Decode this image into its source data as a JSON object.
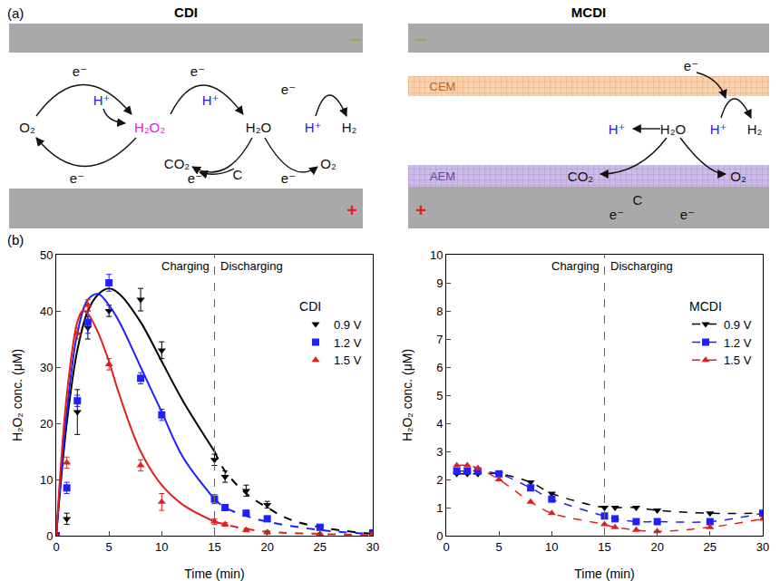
{
  "diagram": {
    "label": "(a)",
    "panels": [
      {
        "title": "CDI",
        "labels": [
          {
            "text": "−",
            "color": "#8db33a"
          },
          {
            "text": "+",
            "color": "#e02020"
          },
          {
            "text": "e⁻",
            "color": "#111111"
          },
          {
            "text": "e⁻",
            "color": "#111111"
          },
          {
            "text": "e⁻",
            "color": "#111111"
          },
          {
            "text": "O₂",
            "color": "#111111"
          },
          {
            "text": "H⁺",
            "color": "#2222dd"
          },
          {
            "text": "H₂O₂",
            "color": "#dd22dd"
          },
          {
            "text": "H⁺",
            "color": "#2222dd"
          },
          {
            "text": "H₂O",
            "color": "#111111"
          },
          {
            "text": "H⁺",
            "color": "#2222dd"
          },
          {
            "text": "H₂",
            "color": "#111111"
          },
          {
            "text": "CO₂",
            "color": "#111111"
          },
          {
            "text": "C",
            "color": "#111111"
          },
          {
            "text": "O₂",
            "color": "#111111"
          },
          {
            "text": "e⁻",
            "color": "#111111"
          },
          {
            "text": "e⁻",
            "color": "#111111"
          },
          {
            "text": "e⁻",
            "color": "#111111"
          }
        ]
      },
      {
        "title": "MCDI",
        "labels": [
          {
            "text": "−",
            "color": "#8db33a"
          },
          {
            "text": "+",
            "color": "#e02020"
          },
          {
            "text": "e⁻",
            "color": "#111111"
          },
          {
            "text": "H⁺",
            "color": "#2222dd"
          },
          {
            "text": "H₂O",
            "color": "#111111"
          },
          {
            "text": "H⁺",
            "color": "#2222dd"
          },
          {
            "text": "H₂",
            "color": "#111111"
          },
          {
            "text": "CO₂",
            "color": "#111111"
          },
          {
            "text": "C",
            "color": "#111111"
          },
          {
            "text": "O₂",
            "color": "#111111"
          },
          {
            "text": "e⁻",
            "color": "#111111"
          },
          {
            "text": "e⁻",
            "color": "#111111"
          }
        ],
        "membranes": [
          {
            "text": "CEM",
            "color": "#b86a2a"
          },
          {
            "text": "AEM",
            "color": "#6a4a9a"
          }
        ]
      }
    ]
  },
  "figure_label": "(b)",
  "chart_data": [
    {
      "type": "scatter",
      "xlabel": "Time (min)",
      "ylabel": "H₂O₂ conc. (μM)",
      "legend_title": "CDI",
      "xlim": [
        0,
        30
      ],
      "xticks": [
        0,
        5,
        10,
        15,
        20,
        25,
        30
      ],
      "ylim": [
        0,
        50
      ],
      "yticks": [
        0,
        10,
        20,
        30,
        40,
        50
      ],
      "grid": false,
      "legend": "upper right",
      "divider": 15,
      "annotations": [
        {
          "text": "Charging",
          "x": 15,
          "side": "left"
        },
        {
          "text": "Discharging",
          "x": 15,
          "side": "right"
        }
      ],
      "series": [
        {
          "name": "0.9 V",
          "color": "#000000",
          "marker": "triangle-down",
          "x": [
            0,
            1,
            2,
            3,
            5,
            8,
            10,
            15,
            16,
            18,
            20,
            25,
            30
          ],
          "values": [
            0,
            3,
            22,
            37,
            40,
            42,
            33,
            13.5,
            10.5,
            8,
            5.5,
            1.5,
            0.5
          ],
          "errors": [
            0,
            1,
            4,
            2,
            1,
            2,
            1.5,
            1,
            1,
            1,
            0.6,
            0.5,
            0.3
          ],
          "fit": [
            {
              "line_style": "solid",
              "x": [
                0,
                1,
                2,
                3,
                4,
                5,
                6,
                8,
                10,
                12,
                15
              ],
              "values": [
                0,
                20,
                33,
                40,
                43,
                44,
                43,
                38,
                31,
                24,
                15
              ]
            },
            {
              "line_style": "dashed",
              "x": [
                15,
                16,
                18,
                20,
                22,
                25,
                30
              ],
              "values": [
                15,
                11.5,
                7.5,
                5,
                3,
                1.5,
                0.3
              ]
            }
          ]
        },
        {
          "name": "1.2 V",
          "color": "#1f1fff",
          "marker": "square",
          "x": [
            0,
            1,
            2,
            3,
            5,
            8,
            10,
            15,
            16,
            18,
            20,
            25,
            30
          ],
          "values": [
            0,
            8.5,
            24,
            38,
            45,
            28,
            21.5,
            6.5,
            5,
            4,
            3,
            1.5,
            0.5
          ],
          "errors": [
            0,
            1,
            1,
            2,
            1.5,
            1,
            1,
            0.8,
            0.5,
            0.5,
            0.5,
            0.3,
            0.3
          ],
          "fit": [
            {
              "line_style": "solid",
              "x": [
                0,
                1,
                2,
                3,
                4,
                5,
                6,
                8,
                10,
                12,
                15
              ],
              "values": [
                0,
                22,
                36,
                42,
                43,
                41,
                38,
                30,
                22,
                14,
                6.5
              ]
            },
            {
              "line_style": "dashed",
              "x": [
                15,
                16,
                18,
                20,
                25,
                30
              ],
              "values": [
                6.5,
                5,
                3.5,
                2.5,
                1,
                0.3
              ]
            }
          ]
        },
        {
          "name": "1.5 V",
          "color": "#e02020",
          "marker": "triangle-up",
          "x": [
            0,
            1,
            2,
            3,
            5,
            8,
            10,
            15,
            16,
            18,
            20,
            25,
            30
          ],
          "values": [
            0,
            13,
            36,
            41,
            30.5,
            12.5,
            6,
            2.5,
            2,
            1,
            0.6,
            0.3,
            0.2
          ],
          "errors": [
            0,
            1,
            1,
            1,
            1,
            1,
            1.5,
            0.5,
            0.3,
            0.3,
            0.3,
            0.2,
            0.2
          ],
          "fit": [
            {
              "line_style": "solid",
              "x": [
                0,
                1,
                2,
                2.5,
                3,
                4,
                5,
                6,
                8,
                10,
                12,
                15
              ],
              "values": [
                0,
                25,
                38,
                40,
                39.5,
                36,
                31,
                25,
                15,
                9,
                5.5,
                2.5
              ]
            },
            {
              "line_style": "dashed",
              "x": [
                15,
                16,
                18,
                20,
                25,
                30
              ],
              "values": [
                2.5,
                2,
                1.2,
                0.7,
                0.3,
                0.1
              ]
            }
          ]
        }
      ]
    },
    {
      "type": "scatter",
      "xlabel": "Time (min)",
      "ylabel": "H₂O₂ conc. (μM)",
      "legend_title": "MCDI",
      "xlim": [
        0,
        30
      ],
      "xticks": [
        0,
        5,
        10,
        15,
        20,
        25,
        30
      ],
      "ylim": [
        0,
        10
      ],
      "yticks": [
        0,
        1,
        2,
        3,
        4,
        5,
        6,
        7,
        8,
        9,
        10
      ],
      "grid": false,
      "legend": "upper right",
      "divider": 15,
      "annotations": [
        {
          "text": "Charging",
          "x": 15,
          "side": "left"
        },
        {
          "text": "Discharging",
          "x": 15,
          "side": "right"
        }
      ],
      "series": [
        {
          "name": "0.9 V",
          "color": "#000000",
          "marker": "triangle-down",
          "line_style": "dashed",
          "x": [
            1,
            2,
            3,
            5,
            8,
            10,
            15,
            16,
            18,
            20,
            25,
            30
          ],
          "values": [
            2.2,
            2.2,
            2.2,
            2.2,
            1.9,
            1.5,
            1.0,
            1.0,
            1.0,
            0.9,
            0.8,
            0.8
          ]
        },
        {
          "name": "1.2 V",
          "color": "#1f1fff",
          "marker": "square",
          "line_style": "dashed",
          "x": [
            1,
            2,
            3,
            5,
            8,
            10,
            15,
            16,
            18,
            20,
            25,
            30
          ],
          "values": [
            2.3,
            2.3,
            2.3,
            2.2,
            1.7,
            1.3,
            0.7,
            0.6,
            0.5,
            0.5,
            0.5,
            0.8
          ]
        },
        {
          "name": "1.5 V",
          "color": "#e02020",
          "marker": "triangle-up",
          "line_style": "dashed",
          "x": [
            1,
            2,
            3,
            5,
            8,
            10,
            15,
            16,
            18,
            20,
            25,
            30
          ],
          "values": [
            2.5,
            2.5,
            2.4,
            2.0,
            1.2,
            0.8,
            0.4,
            0.3,
            0.2,
            0.15,
            0.3,
            0.6
          ]
        }
      ]
    }
  ]
}
